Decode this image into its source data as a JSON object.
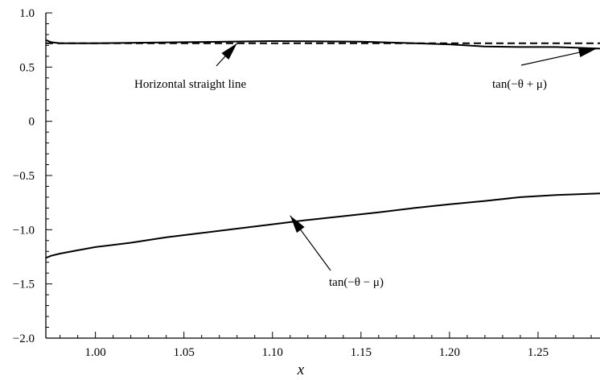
{
  "chart_data": {
    "type": "line",
    "title": "",
    "xlabel": "x",
    "ylabel": "",
    "xlim": [
      0.972,
      1.285
    ],
    "ylim": [
      -2.0,
      1.0
    ],
    "grid": false,
    "x_ticks": [
      1.0,
      1.05,
      1.1,
      1.15,
      1.2,
      1.25
    ],
    "x_tick_labels": [
      "1.00",
      "1.05",
      "1.10",
      "1.15",
      "1.20",
      "1.25"
    ],
    "y_ticks": [
      1.0,
      0.5,
      0,
      -0.5,
      -1.0,
      -1.5,
      -2.0
    ],
    "y_tick_labels": [
      "1.0",
      "0.5",
      "0",
      "−0.5",
      "−1.0",
      "−1.5",
      "−2.0"
    ],
    "series": [
      {
        "style": "dashed",
        "x": [
          0.972,
          1.285
        ],
        "values": [
          0.72,
          0.72
        ]
      },
      {
        "style": "solid",
        "x": [
          0.972,
          0.975,
          0.98,
          1.0,
          1.05,
          1.1,
          1.15,
          1.2,
          1.22,
          1.24,
          1.26,
          1.27,
          1.285
        ],
        "values": [
          0.75,
          0.73,
          0.72,
          0.72,
          0.73,
          0.74,
          0.735,
          0.71,
          0.69,
          0.685,
          0.685,
          0.68,
          0.67
        ]
      },
      {
        "style": "solid",
        "x": [
          0.972,
          0.975,
          0.98,
          0.99,
          1.0,
          1.02,
          1.04,
          1.06,
          1.08,
          1.1,
          1.12,
          1.14,
          1.16,
          1.18,
          1.2,
          1.22,
          1.24,
          1.26,
          1.285
        ],
        "values": [
          -1.26,
          -1.24,
          -1.22,
          -1.19,
          -1.16,
          -1.12,
          -1.07,
          -1.03,
          -0.99,
          -0.95,
          -0.91,
          -0.875,
          -0.84,
          -0.8,
          -0.765,
          -0.735,
          -0.7,
          -0.68,
          -0.665
        ]
      }
    ],
    "annotations": [
      {
        "text": "Horizontal straight line",
        "arrow_to": [
          1.08,
          0.72
        ]
      },
      {
        "text": "tan(−θ + μ)",
        "arrow_to": [
          1.283,
          0.67
        ]
      },
      {
        "text": "tan(−θ − μ)",
        "arrow_to": [
          1.11,
          -0.87
        ]
      }
    ]
  }
}
